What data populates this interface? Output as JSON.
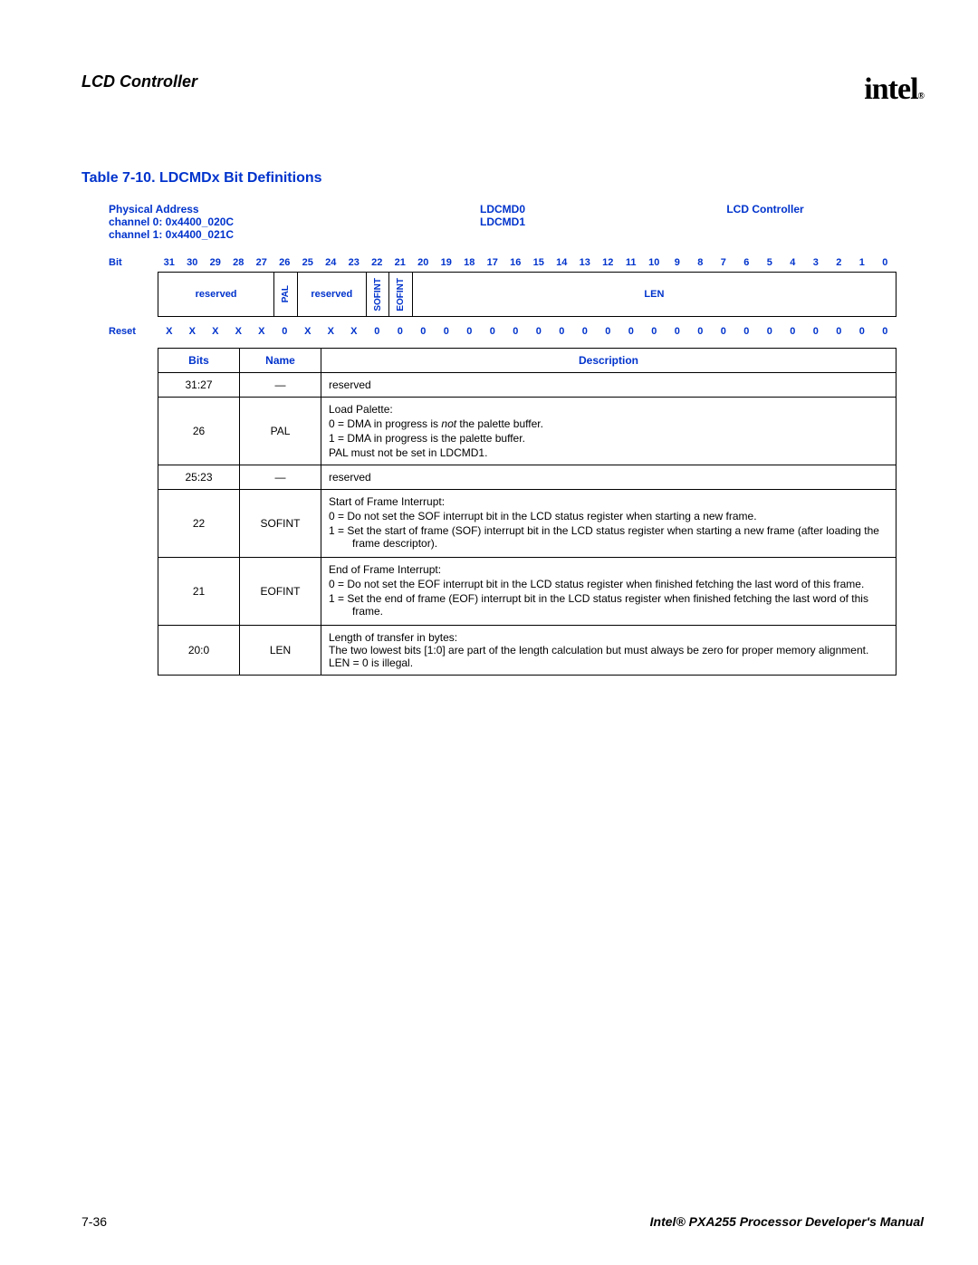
{
  "header": {
    "section_title": "LCD Controller",
    "logo_text": "intel",
    "logo_sub": "®"
  },
  "table_title": "Table 7-10. LDCMDx Bit Definitions",
  "colors": {
    "accent": "#0033cc",
    "text": "#000000",
    "border": "#000000",
    "bg": "#ffffff"
  },
  "typography": {
    "body_pt": 12,
    "title_pt": 16,
    "header_pt": 18
  },
  "info": {
    "addr_label": "Physical Address",
    "addr_line1": "channel 0: 0x4400_020C",
    "addr_line2": "channel 1: 0x4400_021C",
    "reg_line1": "LDCMD0",
    "reg_line2": "LDCMD1",
    "module": "LCD Controller"
  },
  "bit_row_label": "Bit",
  "bits": [
    "31",
    "30",
    "29",
    "28",
    "27",
    "26",
    "25",
    "24",
    "23",
    "22",
    "21",
    "20",
    "19",
    "18",
    "17",
    "16",
    "15",
    "14",
    "13",
    "12",
    "11",
    "10",
    "9",
    "8",
    "7",
    "6",
    "5",
    "4",
    "3",
    "2",
    "1",
    "0"
  ],
  "fields": [
    {
      "label": "reserved",
      "span": 5,
      "vertical": false
    },
    {
      "label": "PAL",
      "span": 1,
      "vertical": true
    },
    {
      "label": "reserved",
      "span": 3,
      "vertical": false
    },
    {
      "label": "SOFINT",
      "span": 1,
      "vertical": true
    },
    {
      "label": "EOFINT",
      "span": 1,
      "vertical": true
    },
    {
      "label": "LEN",
      "span": 21,
      "vertical": false
    }
  ],
  "reset_label": "Reset",
  "reset": [
    "X",
    "X",
    "X",
    "X",
    "X",
    "0",
    "X",
    "X",
    "X",
    "0",
    "0",
    "0",
    "0",
    "0",
    "0",
    "0",
    "0",
    "0",
    "0",
    "0",
    "0",
    "0",
    "0",
    "0",
    "0",
    "0",
    "0",
    "0",
    "0",
    "0",
    "0",
    "0"
  ],
  "detail_columns": {
    "bits": "Bits",
    "name": "Name",
    "desc": "Description"
  },
  "rows": [
    {
      "bits": "31:27",
      "name": "—",
      "desc_lines": [
        "reserved"
      ]
    },
    {
      "bits": "26",
      "name": "PAL",
      "desc_lines": [
        "Load Palette:",
        "0 =  DMA in progress is <em class='no'>not</em> the palette buffer.",
        "1 =  DMA in progress is the palette buffer.",
        "PAL must not be set in LDCMD1."
      ],
      "hang": [
        1,
        2
      ]
    },
    {
      "bits": "25:23",
      "name": "—",
      "desc_lines": [
        "reserved"
      ]
    },
    {
      "bits": "22",
      "name": "SOFINT",
      "desc_lines": [
        "Start of Frame Interrupt:",
        "0 =  Do not set the SOF interrupt bit in the LCD status register when starting a new frame.",
        "1 =  Set the start of frame (SOF) interrupt bit in the LCD status register when starting a new frame (after loading the frame descriptor)."
      ],
      "hang": [
        1,
        2
      ]
    },
    {
      "bits": "21",
      "name": "EOFINT",
      "desc_lines": [
        "End of Frame Interrupt:",
        "0 =  Do not set the EOF interrupt bit in the LCD status register when finished fetching the last word of this frame.",
        "1 =  Set the end of frame (EOF) interrupt bit in the LCD status register when finished fetching the last word of this frame."
      ],
      "hang": [
        1,
        2
      ]
    },
    {
      "bits": "20:0",
      "name": "LEN",
      "desc_lines": [
        "Length of transfer in bytes:",
        "The two lowest bits [1:0] are part of the length calculation but must always be zero for proper memory alignment.",
        "LEN = 0 is illegal."
      ]
    }
  ],
  "footer": {
    "page": "7-36",
    "manual": "Intel® PXA255 Processor Developer's Manual"
  }
}
